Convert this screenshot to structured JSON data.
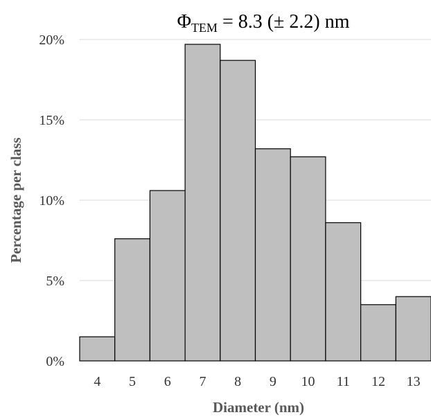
{
  "chart_data": {
    "type": "bar",
    "title": {
      "symbol": "Φ",
      "subscript": "TEM",
      "text": " = 8.3 (± 2.2) nm"
    },
    "xlabel": "Diameter (nm)",
    "ylabel": "Percentage per class",
    "categories": [
      "4",
      "5",
      "6",
      "7",
      "8",
      "9",
      "10",
      "11",
      "12",
      "13"
    ],
    "values": [
      1.5,
      7.6,
      10.6,
      19.7,
      18.7,
      13.2,
      12.7,
      8.6,
      3.5,
      4.0
    ],
    "value_unit": "%",
    "ylim": [
      0,
      20
    ],
    "yticks": [
      "0%",
      "5%",
      "10%",
      "15%",
      "20%"
    ],
    "grid": true,
    "colors": {
      "bar_fill": "#bfbfbf",
      "bar_stroke": "#000000",
      "grid": "#d9d9d9"
    }
  }
}
